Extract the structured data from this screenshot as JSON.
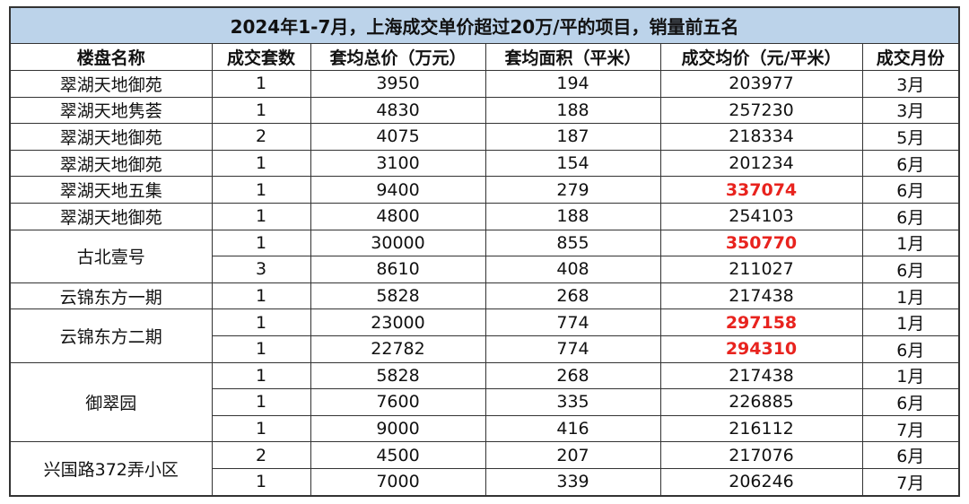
{
  "table": {
    "title": "2024年1-7月，上海成交单价超过20万/平的项目，销量前五名",
    "headers": [
      "楼盘名称",
      "成交套数",
      "套均总价（万元）",
      "套均面积（平米）",
      "成交均价（元/平米）",
      "成交月份"
    ],
    "emphasis_color": "#e8231e",
    "groups": [
      {
        "name": "翠湖天地御苑",
        "rows": [
          {
            "cells": [
              1,
              3950,
              194,
              203977,
              "3月"
            ]
          }
        ]
      },
      {
        "name": "翠湖天地隽荟",
        "rows": [
          {
            "cells": [
              1,
              4830,
              188,
              257230,
              "3月"
            ]
          }
        ]
      },
      {
        "name": "翠湖天地御苑",
        "rows": [
          {
            "cells": [
              2,
              4075,
              187,
              218334,
              "5月"
            ]
          }
        ]
      },
      {
        "name": "翠湖天地御苑",
        "rows": [
          {
            "cells": [
              1,
              3100,
              154,
              201234,
              "6月"
            ]
          }
        ]
      },
      {
        "name": "翠湖天地五集",
        "rows": [
          {
            "cells": [
              1,
              9400,
              279,
              337074,
              "6月"
            ],
            "emphasis": true
          }
        ]
      },
      {
        "name": "翠湖天地御苑",
        "rows": [
          {
            "cells": [
              1,
              4800,
              188,
              254103,
              "6月"
            ]
          }
        ]
      },
      {
        "name": "古北壹号",
        "rows": [
          {
            "cells": [
              1,
              30000,
              855,
              350770,
              "1月"
            ],
            "emphasis": true
          },
          {
            "cells": [
              3,
              8610,
              408,
              211027,
              "6月"
            ]
          }
        ]
      },
      {
        "name": "云锦东方一期",
        "rows": [
          {
            "cells": [
              1,
              5828,
              268,
              217438,
              "1月"
            ]
          }
        ]
      },
      {
        "name": "云锦东方二期",
        "rows": [
          {
            "cells": [
              1,
              23000,
              774,
              297158,
              "1月"
            ],
            "emphasis": true
          },
          {
            "cells": [
              1,
              22782,
              774,
              294310,
              "6月"
            ],
            "emphasis": true
          }
        ]
      },
      {
        "name": "御翠园",
        "rows": [
          {
            "cells": [
              1,
              5828,
              268,
              217438,
              "1月"
            ]
          },
          {
            "cells": [
              1,
              7600,
              335,
              226885,
              "6月"
            ]
          },
          {
            "cells": [
              1,
              9000,
              416,
              216112,
              "7月"
            ]
          }
        ]
      },
      {
        "name": "兴国路372弄小区",
        "rows": [
          {
            "cells": [
              2,
              4500,
              207,
              217076,
              "6月"
            ]
          },
          {
            "cells": [
              1,
              7000,
              339,
              206246,
              "7月"
            ]
          }
        ]
      }
    ]
  }
}
